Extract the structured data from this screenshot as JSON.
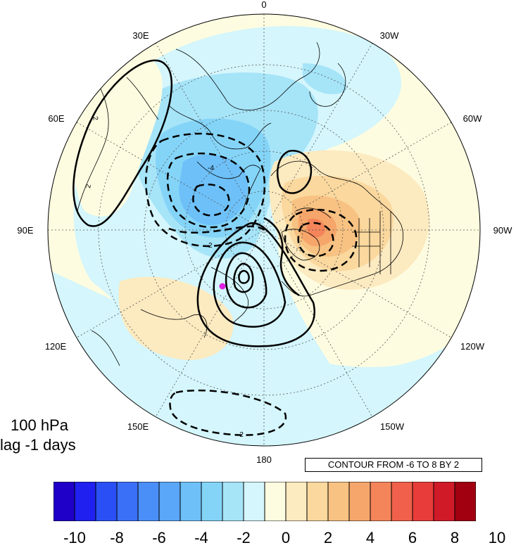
{
  "map": {
    "projection": "north-polar-stereographic",
    "longitude_labels": [
      {
        "id": "lon-0",
        "text": "0"
      },
      {
        "id": "lon-30w",
        "text": "30W"
      },
      {
        "id": "lon-60w",
        "text": "60W"
      },
      {
        "id": "lon-90w",
        "text": "90W"
      },
      {
        "id": "lon-120w",
        "text": "120W"
      },
      {
        "id": "lon-150w",
        "text": "150W"
      },
      {
        "id": "lon-180",
        "text": "180"
      },
      {
        "id": "lon-150e",
        "text": "150E"
      },
      {
        "id": "lon-120e",
        "text": "120E"
      },
      {
        "id": "lon-90e",
        "text": "90E"
      },
      {
        "id": "lon-60e",
        "text": "60E"
      },
      {
        "id": "lon-30e",
        "text": "30E"
      }
    ],
    "contour_labels": [
      "2",
      "-4",
      "2",
      "2",
      "-2"
    ],
    "marker_color": "#e020e0"
  },
  "panel": {
    "level": "100 hPa",
    "lag": "lag -1 days",
    "contour_info": "CONTOUR FROM -6 TO 8 BY 2"
  },
  "colorbar": {
    "colors": [
      "#1f00c8",
      "#2020f0",
      "#2a50f5",
      "#3a70f8",
      "#4a8ef8",
      "#5aa6f8",
      "#6ec0f8",
      "#84d4f8",
      "#a6e4f8",
      "#d4f6fc",
      "#fefce0",
      "#fceac0",
      "#fad89e",
      "#f8c282",
      "#f6a66a",
      "#f4845a",
      "#f0604a",
      "#e83c3a",
      "#d01a28",
      "#a00010"
    ],
    "tick_labels": [
      "-10",
      "-8",
      "-6",
      "-4",
      "-2",
      "0",
      "2",
      "4",
      "6",
      "8",
      "10"
    ]
  }
}
